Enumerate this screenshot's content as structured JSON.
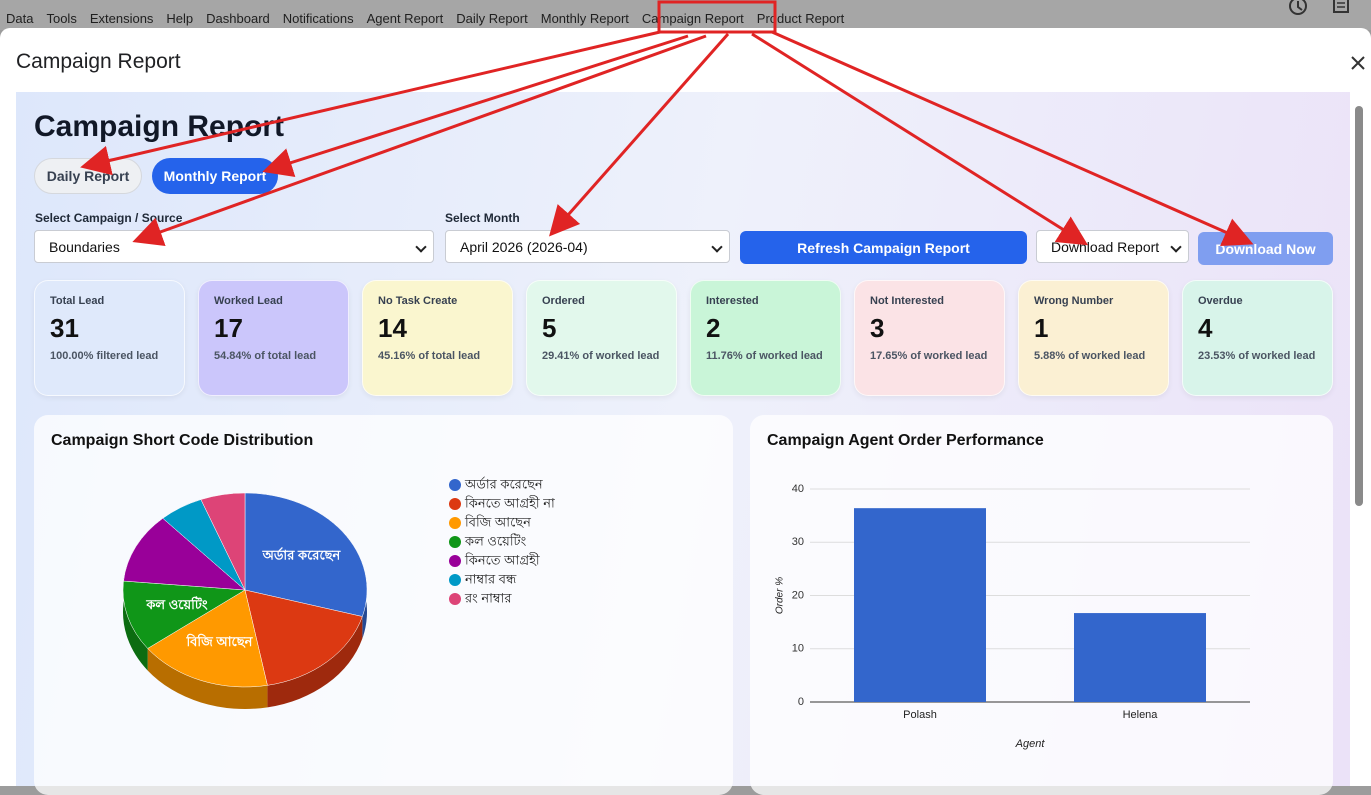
{
  "menu": [
    "Data",
    "Tools",
    "Extensions",
    "Help",
    "Dashboard",
    "Notifications",
    "Agent Report",
    "Daily Report",
    "Monthly Report",
    "Campaign Report",
    "Product Report"
  ],
  "dialog_title": "Campaign Report",
  "heading": "Campaign Report",
  "tabs": [
    "Daily Report",
    "Monthly Report"
  ],
  "filters": {
    "campaign_label": "Select Campaign / Source",
    "campaign_value": "Boundaries",
    "month_label": "Select Month",
    "month_value": "April 2026 (2026-04)",
    "refresh": "Refresh Campaign Report",
    "download_select": "Download Report",
    "download_now": "Download Now"
  },
  "cards": [
    {
      "label": "Total Lead",
      "value": 31,
      "note": "100.00% filtered lead"
    },
    {
      "label": "Worked Lead",
      "value": 17,
      "note": "54.84% of total lead"
    },
    {
      "label": "No Task Create",
      "value": 14,
      "note": "45.16% of total lead"
    },
    {
      "label": "Ordered",
      "value": 5,
      "note": "29.41% of worked lead"
    },
    {
      "label": "Interested",
      "value": 2,
      "note": "11.76% of worked lead"
    },
    {
      "label": "Not Interested",
      "value": 3,
      "note": "17.65% of worked lead"
    },
    {
      "label": "Wrong Number",
      "value": 1,
      "note": "5.88% of worked lead"
    },
    {
      "label": "Overdue",
      "value": 4,
      "note": "23.53% of worked lead"
    }
  ],
  "chart_data": [
    {
      "type": "pie",
      "title": "Campaign Short Code Distribution",
      "categories": [
        "অর্ডার করেছেন",
        "কিনতে আগ্রহী না",
        "বিজি আছেন",
        "কল ওয়েটিং",
        "কিনতে আগ্রহী",
        "নাম্বার বন্ধ",
        "রং নাম্বার"
      ],
      "values": [
        5,
        3,
        3,
        2,
        2,
        1,
        1
      ],
      "colors": [
        "#3366cc",
        "#dc3912",
        "#ff9900",
        "#109618",
        "#990099",
        "#0099c6",
        "#dd4477"
      ]
    },
    {
      "type": "bar",
      "title": "Campaign Agent Order Performance",
      "categories": [
        "Polash",
        "Helena"
      ],
      "values": [
        36.4,
        16.7
      ],
      "color": "#3366cc",
      "ylim": [
        0,
        40
      ],
      "yticks": [
        0,
        10,
        20,
        30,
        40
      ],
      "xlabel": "Agent",
      "ylabel": "Order %",
      "grid": true
    }
  ]
}
